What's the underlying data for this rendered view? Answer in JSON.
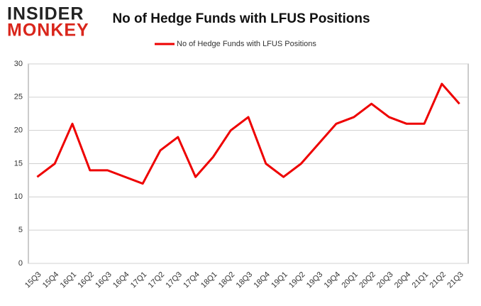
{
  "logo": {
    "line1": "INSIDER",
    "line2": "MONKEY"
  },
  "chart_data": {
    "type": "line",
    "title": "No of Hedge Funds with LFUS Positions",
    "categories": [
      "15Q3",
      "15Q4",
      "16Q1",
      "16Q2",
      "16Q3",
      "16Q4",
      "17Q1",
      "17Q2",
      "17Q3",
      "17Q4",
      "18Q1",
      "18Q2",
      "18Q3",
      "18Q4",
      "19Q1",
      "19Q2",
      "19Q3",
      "19Q4",
      "20Q1",
      "20Q2",
      "20Q3",
      "20Q4",
      "21Q1",
      "21Q2",
      "21Q3"
    ],
    "series": [
      {
        "name": "No of Hedge Funds with LFUS Positions",
        "color": "#ee0000",
        "values": [
          13,
          15,
          21,
          14,
          14,
          13,
          12,
          17,
          19,
          13,
          16,
          20,
          22,
          15,
          13,
          15,
          18,
          21,
          22,
          24,
          22,
          21,
          21,
          27,
          24
        ]
      }
    ],
    "ylim": [
      0,
      30
    ],
    "yticks": [
      0,
      5,
      10,
      15,
      20,
      25,
      30
    ],
    "grid": true,
    "legend": "top"
  }
}
